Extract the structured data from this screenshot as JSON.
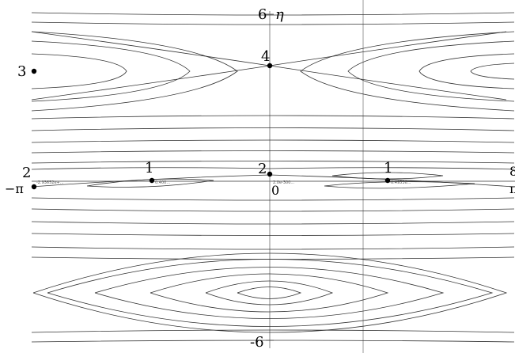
{
  "axes": {
    "y_symbol": "η",
    "y_top_value": "6",
    "y_bottom_value": "-6",
    "x_left_label": "−π",
    "x_right_label_partial": "π",
    "origin_label": "0",
    "right_edge_partial": "8"
  },
  "points": [
    {
      "id": "3",
      "label": "3"
    },
    {
      "id": "4",
      "label": "4"
    },
    {
      "id": "2a",
      "label": "2"
    },
    {
      "id": "2b",
      "label": "2"
    },
    {
      "id": "1a",
      "label": "1"
    },
    {
      "id": "1b",
      "label": "1"
    }
  ],
  "tiny_labels": {
    "left": "-2.93652e+...",
    "mid_left": "0.400...",
    "center": "2.0e-300...",
    "mid_right": "0.49536..."
  },
  "colors": {
    "curve": "#333333",
    "axis": "#888888",
    "point": "#000000"
  }
}
